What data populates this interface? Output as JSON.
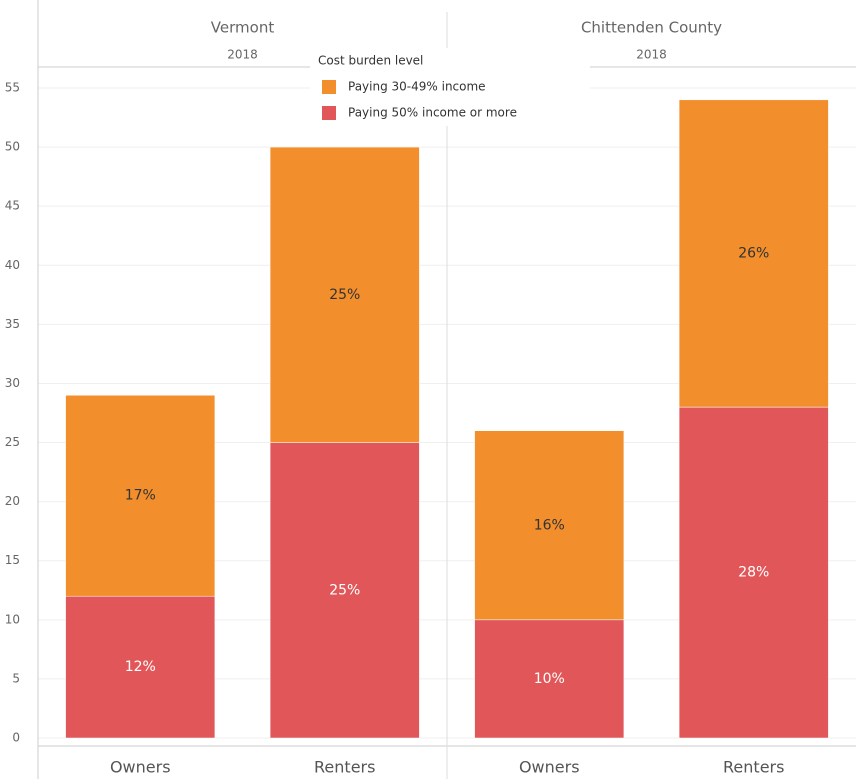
{
  "chart_data": {
    "type": "bar",
    "stacked": true,
    "legend_title": "Cost burden level",
    "panels": [
      {
        "title": "Vermont",
        "subtitle": "2018"
      },
      {
        "title": "Chittenden County",
        "subtitle": "2018"
      }
    ],
    "categories": [
      "Owners",
      "Renters",
      "Owners",
      "Renters"
    ],
    "series": [
      {
        "name": "Paying 50% income or more",
        "color": "#e15759",
        "values": [
          12,
          25,
          10,
          28
        ],
        "value_labels": [
          "12%",
          "25%",
          "10%",
          "28%"
        ]
      },
      {
        "name": "Paying 30-49% income",
        "color": "#f28e2b",
        "values": [
          17,
          25,
          16,
          26
        ],
        "value_labels": [
          "17%",
          "25%",
          "16%",
          "26%"
        ]
      }
    ],
    "ylim": [
      0,
      55
    ],
    "yticks": [
      0,
      5,
      10,
      15,
      20,
      25,
      30,
      35,
      40,
      45,
      50,
      55
    ],
    "grid": true
  }
}
